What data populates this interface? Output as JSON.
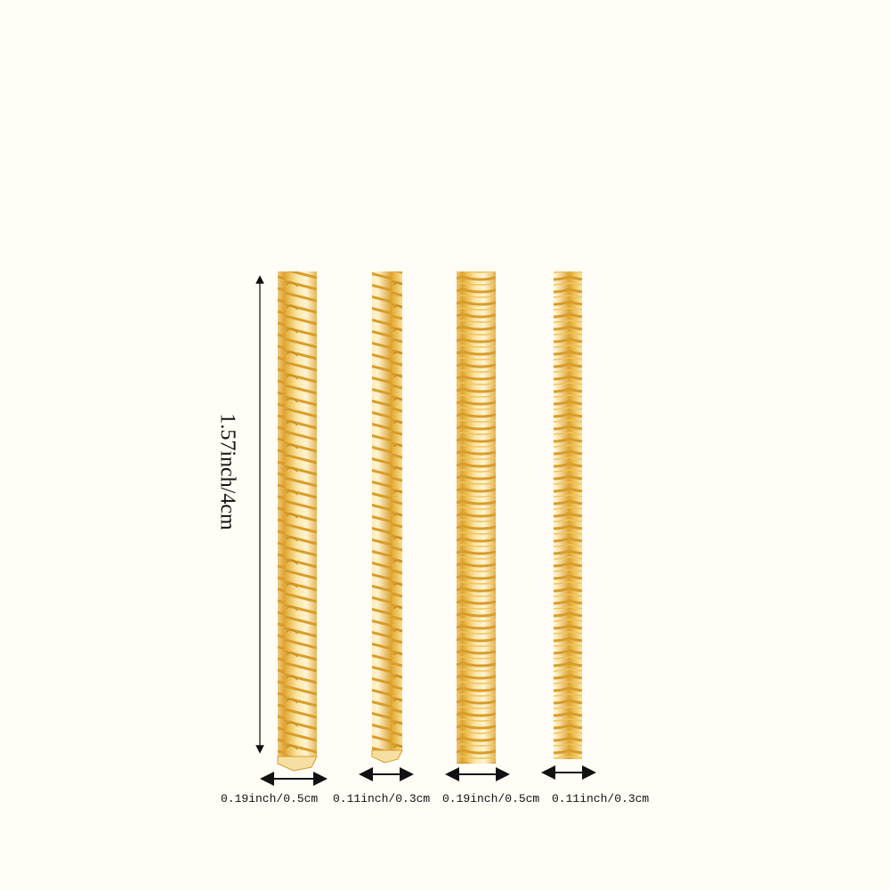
{
  "length_label": "1.57inch/4cm",
  "coils": [
    {
      "label": "0.19inch/0.5cm",
      "style": "spiral"
    },
    {
      "label": "0.11inch/0.3cm",
      "style": "spiral"
    },
    {
      "label": "0.19inch/0.5cm",
      "style": "tight-coil"
    },
    {
      "label": "0.11inch/0.3cm",
      "style": "tight-coil"
    }
  ],
  "colors": {
    "background": "#fffdf6",
    "gold": "#e9b53a",
    "gold_light": "#fbe6a8"
  }
}
